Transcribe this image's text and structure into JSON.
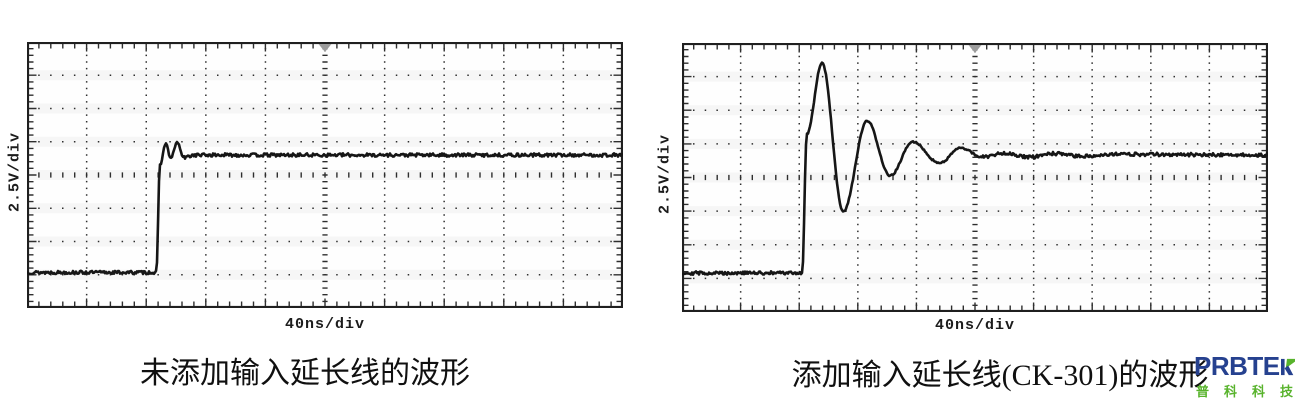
{
  "colors": {
    "trace": "#161616",
    "graticule": "#2e2e2e",
    "border": "#1f1f1f",
    "trigger_marker": "#9c9c9c",
    "axis_text": "#1c1c1c",
    "caption_text": "#101010",
    "logo_blue": "#26418f",
    "logo_green": "#58b32c"
  },
  "logo": {
    "brand": "PRBTEK",
    "brand_display": "PRBTE",
    "sub_chars": [
      "普",
      "科",
      "科",
      "技"
    ]
  },
  "chart_data": [
    {
      "type": "line",
      "caption": "未添加输入延长线的波形",
      "xlabel": "40ns/div",
      "ylabel": "2.5V/div",
      "x_divisions": 10,
      "y_divisions": 8,
      "x_per_div": "40 ns",
      "y_per_div": "2.5 V",
      "grid": "dotted oscilloscope graticule, center axes with minor ticks, border ticks",
      "legend_position": "none",
      "trigger_marker_x_div": 5,
      "baseline_level_div": 1.07,
      "settled_level_div": 4.6,
      "step_edge_x_div": 2.17,
      "noise_seed": 13,
      "series": [
        {
          "name": "step response without input extension lead",
          "points_div": [
            [
              0,
              1.07
            ],
            [
              2.17,
              1.07
            ],
            [
              2.23,
              4.3
            ],
            [
              2.33,
              4.95
            ],
            [
              2.41,
              4.5
            ],
            [
              2.52,
              4.98
            ],
            [
              2.63,
              4.52
            ],
            [
              2.8,
              4.6
            ],
            [
              10,
              4.6
            ]
          ]
        }
      ]
    },
    {
      "type": "line",
      "caption": "添加输入延长线(CK-301)的波形",
      "xlabel": "40ns/div",
      "ylabel": "2.5V/div",
      "x_divisions": 10,
      "y_divisions": 8,
      "x_per_div": "40 ns",
      "y_per_div": "2.5 V",
      "grid": "dotted oscilloscope graticule, center axes with minor ticks, border ticks",
      "legend_position": "none",
      "trigger_marker_x_div": 5,
      "baseline_level_div": 1.16,
      "settled_level_div": 4.67,
      "step_edge_x_div": 2.05,
      "noise_seed": 29,
      "series": [
        {
          "name": "step response with CK-301 input extension lead (ringing)",
          "points_div": [
            [
              0,
              1.16
            ],
            [
              2.05,
              1.16
            ],
            [
              2.13,
              5.3
            ],
            [
              2.39,
              7.41
            ],
            [
              2.75,
              2.98
            ],
            [
              3.16,
              5.68
            ],
            [
              3.55,
              4.05
            ],
            [
              3.94,
              5.06
            ],
            [
              4.39,
              4.43
            ],
            [
              4.76,
              4.88
            ],
            [
              5.12,
              4.61
            ],
            [
              5.51,
              4.73
            ],
            [
              5.92,
              4.6
            ],
            [
              6.35,
              4.71
            ],
            [
              6.8,
              4.63
            ],
            [
              7.3,
              4.69
            ],
            [
              10,
              4.67
            ]
          ]
        }
      ]
    }
  ]
}
